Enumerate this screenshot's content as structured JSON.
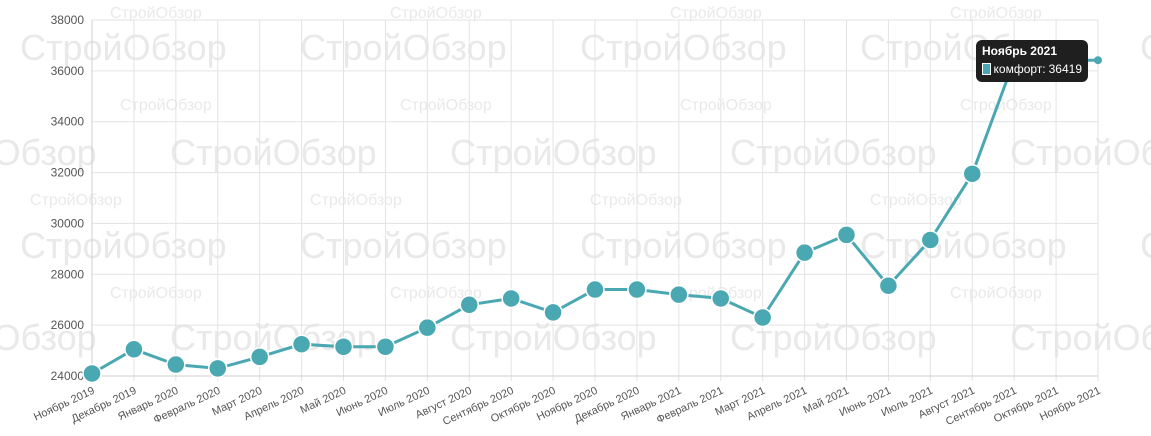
{
  "chart_data": {
    "type": "line",
    "categories": [
      "Ноябрь 2019",
      "Декабрь 2019",
      "Январь 2020",
      "Февраль 2020",
      "Март 2020",
      "Апрель 2020",
      "Май 2020",
      "Июнь 2020",
      "Июль 2020",
      "Август 2020",
      "Сентябрь 2020",
      "Октябрь 2020",
      "Ноябрь 2020",
      "Декабрь 2020",
      "Январь 2021",
      "Февраль 2021",
      "Март 2021",
      "Апрель 2021",
      "Май 2021",
      "Июнь 2021",
      "Июль 2021",
      "Август 2021",
      "Сентябрь 2021",
      "Октябрь 2021",
      "Ноябрь 2021"
    ],
    "series": [
      {
        "name": "комфорт",
        "color": "#4aa8b3",
        "values": [
          24100,
          25050,
          24450,
          24300,
          24750,
          25250,
          25150,
          25150,
          25900,
          26800,
          27050,
          26500,
          27400,
          27400,
          27200,
          27050,
          26300,
          28850,
          29550,
          27550,
          29350,
          31950,
          36419,
          null,
          36419
        ]
      }
    ],
    "yticks": [
      "24000",
      "26000",
      "28000",
      "30000",
      "32000",
      "34000",
      "36000",
      "38000"
    ],
    "ylim": [
      24000,
      38000
    ],
    "grid": true,
    "tooltip": {
      "title": "Ноябрь 2021",
      "series_label": "комфорт:",
      "value": "36419"
    },
    "watermark": "СтройОбзор"
  }
}
